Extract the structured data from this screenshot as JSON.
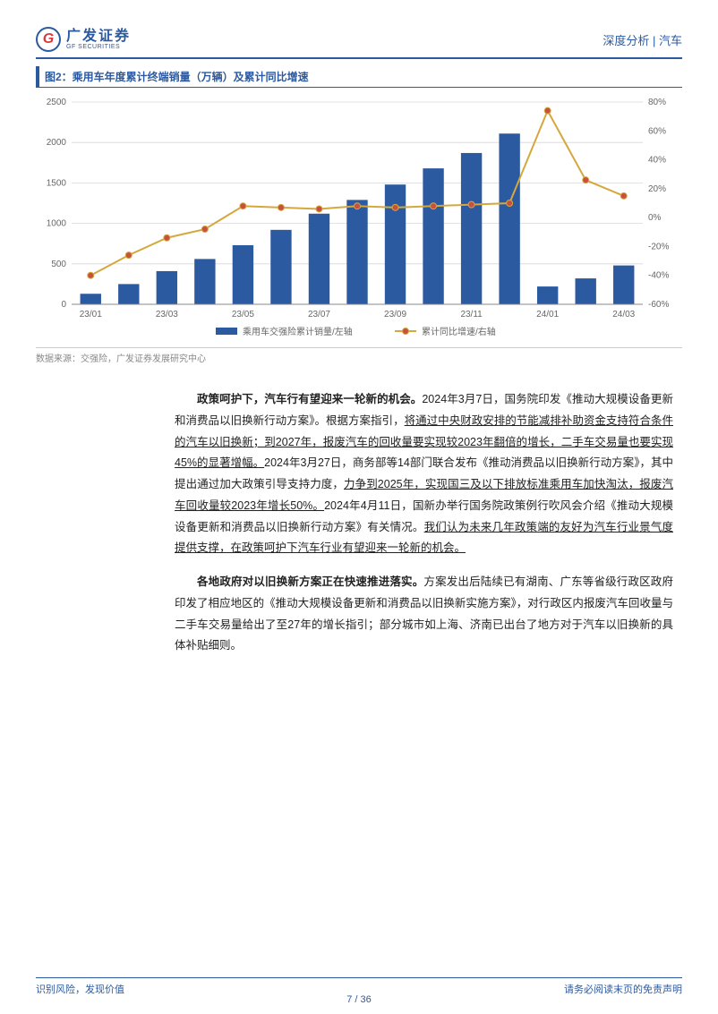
{
  "header": {
    "logo_letter": "G",
    "logo_cn": "广发证券",
    "logo_en": "GF SECURITIES",
    "right_text": "深度分析 | 汽车"
  },
  "chart": {
    "title": "图2：乘用车年度累计终端销量（万辆）及累计同比增速",
    "type": "bar+line",
    "categories": [
      "23/01",
      "",
      "23/03",
      "",
      "23/05",
      "",
      "23/07",
      "",
      "23/09",
      "",
      "23/11",
      "",
      "24/01",
      "",
      "24/03"
    ],
    "bar_values": [
      130,
      250,
      410,
      560,
      730,
      920,
      1120,
      1290,
      1480,
      1680,
      1870,
      2110,
      220,
      320,
      480
    ],
    "line_values": [
      -40,
      -26,
      -14,
      -8,
      8,
      7,
      6,
      8,
      7,
      8,
      9,
      10,
      74,
      26,
      15
    ],
    "left_ylim": [
      0,
      2500
    ],
    "left_ytick_step": 500,
    "right_ylim": [
      -60,
      80
    ],
    "right_ytick_step": 20,
    "bar_color": "#2c5aa0",
    "line_color": "#d4a83c",
    "marker_fill": "#c94f3e",
    "grid_color": "#d8d8d8",
    "legend_bar": "乘用车交强险累计销量/左轴",
    "legend_line": "累计同比增速/右轴",
    "source": "数据来源：交强险，广发证券发展研究中心",
    "title_fontsize": 12,
    "label_fontsize": 10,
    "background_color": "#ffffff"
  },
  "paragraphs": {
    "p1_bold": "政策呵护下，汽车行有望迎来一轮新的机会。",
    "p1_rest": "2024年3月7日，国务院印发《推动大规模设备更新和消费品以旧换新行动方案》。根据方案指引，",
    "p1_u1": "将通过中央财政安排的节能减排补助资金支持符合条件的汽车以旧换新；到2027年，报废汽车的回收量要实现较2023年翻倍的增长，二手车交易量也要实现45%的显著增幅。",
    "p1_mid": "2024年3月27日，商务部等14部门联合发布《推动消费品以旧换新行动方案》，其中提出通过加大政策引导支持力度，",
    "p1_u2": "力争到2025年，实现国三及以下排放标准乘用车加快淘汰，报废汽车回收量较2023年增长50%。",
    "p1_end": "2024年4月11日，国新办举行国务院政策例行吹风会介绍《推动大规模设备更新和消费品以旧换新行动方案》有关情况。",
    "p1_u3": "我们认为未来几年政策端的友好为汽车行业景气度提供支撑，在政策呵护下汽车行业有望迎来一轮新的机会。",
    "p2_bold": "各地政府对以旧换新方案正在快速推进落实。",
    "p2_rest": "方案发出后陆续已有湖南、广东等省级行政区政府印发了相应地区的《推动大规模设备更新和消费品以旧换新实施方案》，对行政区内报废汽车回收量与二手车交易量给出了至27年的增长指引；部分城市如上海、济南已出台了地方对于汽车以旧换新的具体补贴细则。"
  },
  "footer": {
    "left": "识别风险，发现价值",
    "right": "请务必阅读末页的免责声明",
    "page": "7 / 36"
  }
}
